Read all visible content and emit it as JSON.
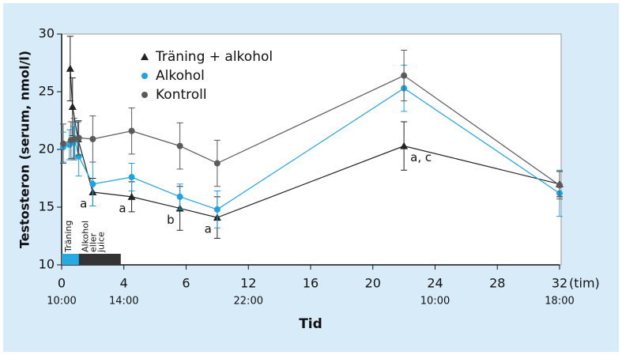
{
  "chart_data": {
    "type": "line",
    "y_label": "Testosteron (serum, nmol/l)",
    "x_label": "Tid",
    "x_unit": "(tim)",
    "xlim": [
      0,
      32
    ],
    "xticks": [
      0,
      4,
      6,
      12,
      16,
      20,
      24,
      28,
      32
    ],
    "ylim": [
      10,
      30
    ],
    "yticks": [
      10,
      15,
      20,
      25,
      30
    ],
    "time_labels": [
      {
        "value": 0,
        "label": "10:00"
      },
      {
        "value": 4,
        "label": "14:00"
      },
      {
        "value": 12,
        "label": "22:00"
      },
      {
        "value": 24,
        "label": "10:00"
      },
      {
        "value": 32,
        "label": "18:00"
      }
    ],
    "phases": [
      {
        "label": "Träning",
        "start": 0,
        "end": 1.1,
        "color": "#29a9e1"
      },
      {
        "label": "Alkohol eller juice",
        "start": 1.1,
        "end": 3.8,
        "color": "#333333"
      }
    ],
    "legend": "top-left",
    "series": [
      {
        "name": "Träning + alkohol",
        "color": "#222222",
        "marker": "triangle",
        "x": [
          0.55,
          0.7,
          1.05,
          2,
          4.25,
          5.8,
          9,
          22,
          32
        ],
        "values": [
          27.0,
          23.7,
          20.9,
          16.3,
          15.9,
          14.9,
          14.1,
          20.3,
          17.0
        ],
        "errors": [
          2.8,
          2.5,
          1.5,
          1.2,
          1.3,
          1.9,
          1.8,
          2.1,
          1.1
        ],
        "point_labels": [
          null,
          null,
          null,
          "a",
          "a",
          "b",
          "a",
          "a, c",
          null
        ]
      },
      {
        "name": "Alkohol",
        "color": "#1ea3e0",
        "marker": "circle",
        "x": [
          0.1,
          0.5,
          0.75,
          0.85,
          1.1,
          2,
          4.25,
          5.8,
          9,
          22,
          32
        ],
        "values": [
          20.2,
          20.4,
          20.6,
          20.8,
          19.4,
          17.0,
          17.6,
          15.9,
          14.8,
          25.3,
          16.2
        ],
        "errors": [
          1.3,
          1.3,
          1.4,
          1.5,
          1.7,
          1.9,
          1.2,
          1.1,
          1.6,
          2.0,
          2.0
        ]
      },
      {
        "name": "Kontroll",
        "color": "#5a5a5a",
        "marker": "circle",
        "x": [
          0.1,
          0.6,
          0.8,
          1.1,
          2,
          4.25,
          5.8,
          9,
          22,
          32
        ],
        "values": [
          20.5,
          20.8,
          20.9,
          21.0,
          20.9,
          21.6,
          20.3,
          18.8,
          26.4,
          16.9
        ],
        "errors": [
          1.7,
          1.6,
          1.8,
          1.5,
          2.0,
          2.0,
          2.0,
          2.0,
          2.2,
          1.2
        ]
      }
    ]
  }
}
